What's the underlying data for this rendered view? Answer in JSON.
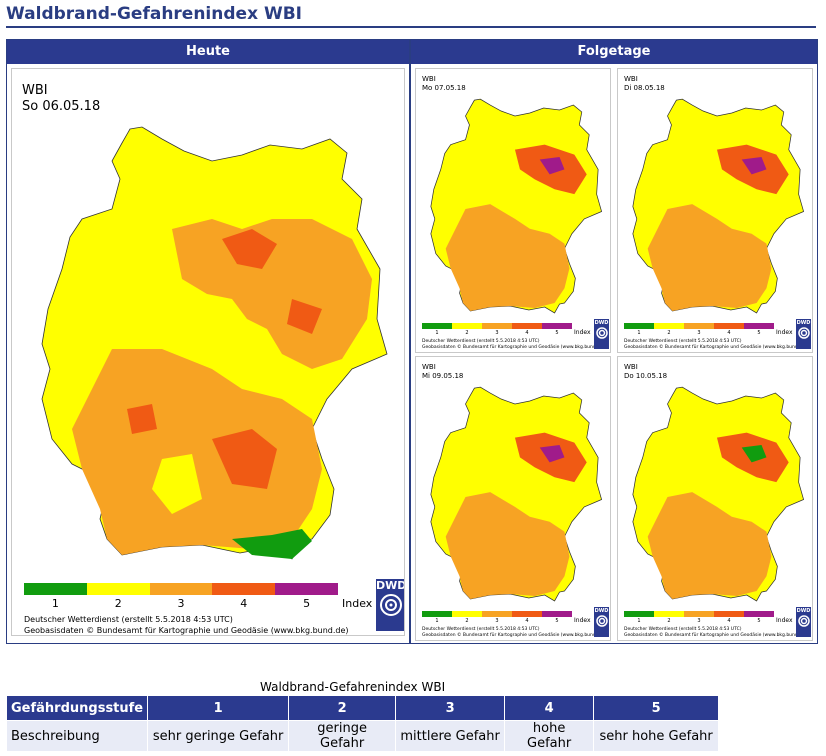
{
  "page": {
    "title": "Waldbrand-Gefahrenindex WBI"
  },
  "today_panel": {
    "header": "Heute",
    "map": {
      "label_index": "WBI",
      "label_date": "So 06.05.18"
    },
    "legend": {
      "levels": [
        "1",
        "2",
        "3",
        "4",
        "5"
      ],
      "index_word": "Index"
    },
    "credit_line1": "Deutscher Wetterdienst (erstellt 5.5.2018 4:53 UTC)",
    "credit_line2": "Geobasisdaten © Bundesamt für Kartographie und Geodäsie (www.bkg.bund.de)",
    "logo_text": "DWD"
  },
  "forecast_panel": {
    "header": "Folgetage",
    "maps": [
      {
        "label_index": "WBI",
        "label_date": "Mo 07.05.18"
      },
      {
        "label_index": "WBI",
        "label_date": "Di 08.05.18"
      },
      {
        "label_index": "WBI",
        "label_date": "Mi 09.05.18"
      },
      {
        "label_index": "WBI",
        "label_date": "Do 10.05.18"
      }
    ],
    "legend": {
      "levels": [
        "1",
        "2",
        "3",
        "4",
        "5"
      ],
      "index_word": "Index"
    },
    "credit_line1": "Deutscher Wetterdienst (erstellt 5.5.2018 4:53 UTC)",
    "credit_line2": "Geobasisdaten © Bundesamt für Kartographie und Geodäsie (www.bkg.bund.de)",
    "logo_text": "DWD"
  },
  "legend_colors": [
    "#119c0f",
    "#ffff00",
    "#f7a323",
    "#f05a14",
    "#a01b8a"
  ],
  "table": {
    "caption": "Waldbrand-Gefahrenindex WBI",
    "row_header_1": "Gefährdungsstufe",
    "levels": [
      "1",
      "2",
      "3",
      "4",
      "5"
    ],
    "row_header_2": "Beschreibung",
    "descriptions": [
      "sehr geringe Gefahr",
      "geringe Gefahr",
      "mittlere Gefahr",
      "hohe Gefahr",
      "sehr hohe Gefahr"
    ]
  }
}
